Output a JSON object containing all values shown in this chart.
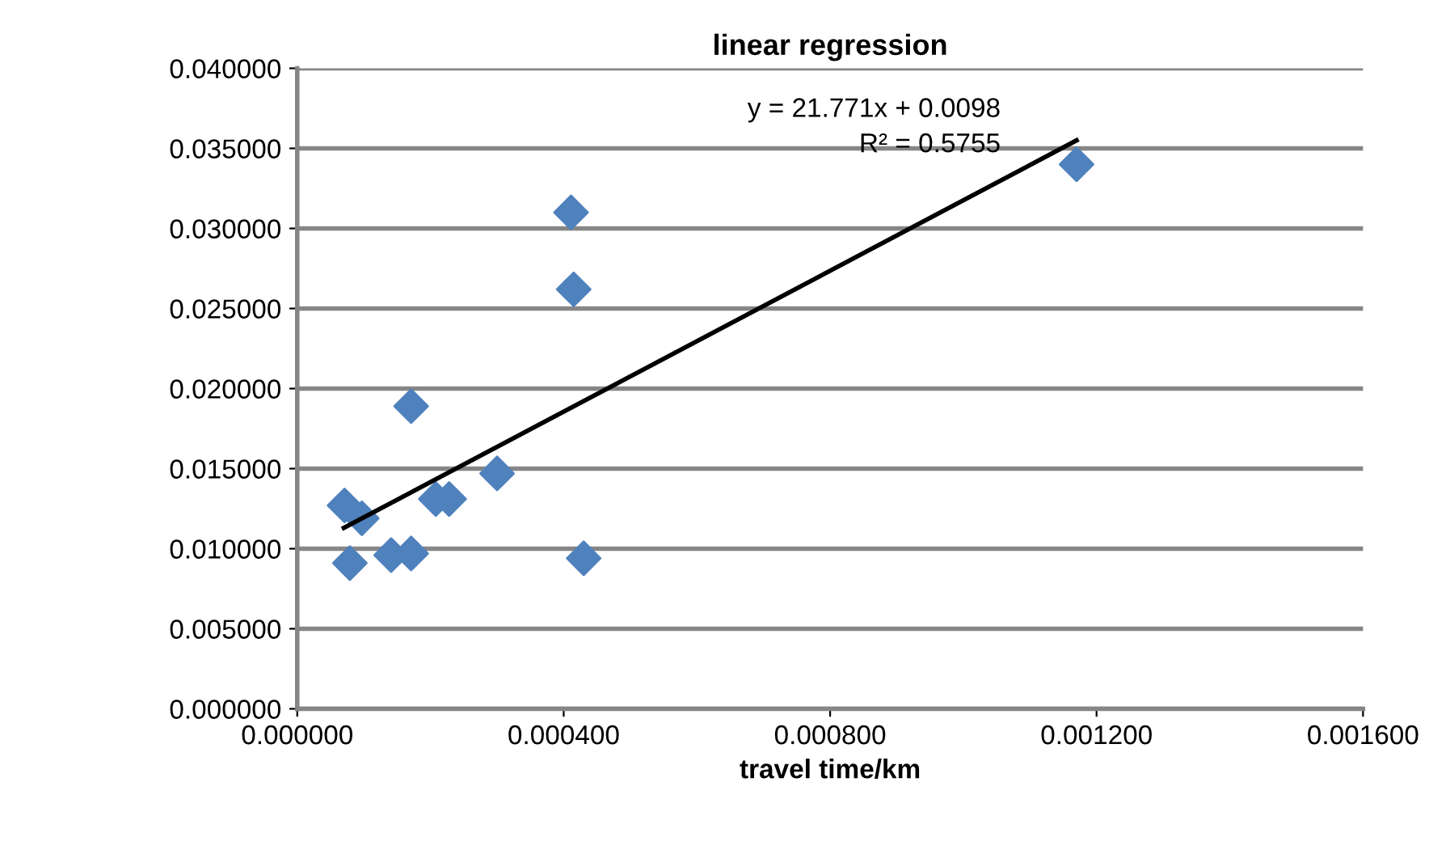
{
  "chart_data": {
    "type": "scatter",
    "title": "linear regression",
    "xlabel": "travel time/km",
    "series": [
      {
        "type": "scatter",
        "color": "#4f81bd",
        "marker": "diamond",
        "x": [
          7.1e-05,
          9.7e-05,
          7.9e-05,
          0.000141,
          0.000171,
          0.000171,
          0.000208,
          0.000228,
          0.0003,
          0.00043,
          0.000411,
          0.000415,
          0.00117
        ],
        "values": [
          0.0127,
          0.0119,
          0.0091,
          0.0096,
          0.0097,
          0.0189,
          0.0131,
          0.0131,
          0.0147,
          0.0094,
          0.031,
          0.0262,
          0.034
        ]
      },
      {
        "type": "line",
        "color": "#000000",
        "marker": "none",
        "line_style": "solid",
        "x": [
          7e-05,
          0.00117
        ],
        "values": [
          0.0113,
          0.0355
        ]
      }
    ],
    "annotations": [
      "y = 21.771x + 0.0098",
      "R² = 0.5755"
    ],
    "xlim": [
      0,
      0.0016
    ],
    "ylim": [
      0,
      0.04
    ],
    "xticks": [
      {
        "value": 0,
        "label": "0.000000"
      },
      {
        "value": 0.0004,
        "label": "0.000400"
      },
      {
        "value": 0.0008,
        "label": "0.000800"
      },
      {
        "value": 0.0012,
        "label": "0.001200"
      },
      {
        "value": 0.0016,
        "label": "0.001600"
      }
    ],
    "yticks": [
      {
        "value": 0,
        "label": "0.000000"
      },
      {
        "value": 0.005,
        "label": "0.005000"
      },
      {
        "value": 0.01,
        "label": "0.010000"
      },
      {
        "value": 0.015,
        "label": "0.015000"
      },
      {
        "value": 0.02,
        "label": "0.020000"
      },
      {
        "value": 0.025,
        "label": "0.025000"
      },
      {
        "value": 0.03,
        "label": "0.030000"
      },
      {
        "value": 0.035,
        "label": "0.035000"
      },
      {
        "value": 0.04,
        "label": "0.040000"
      }
    ],
    "grid": "y",
    "legend": false
  }
}
